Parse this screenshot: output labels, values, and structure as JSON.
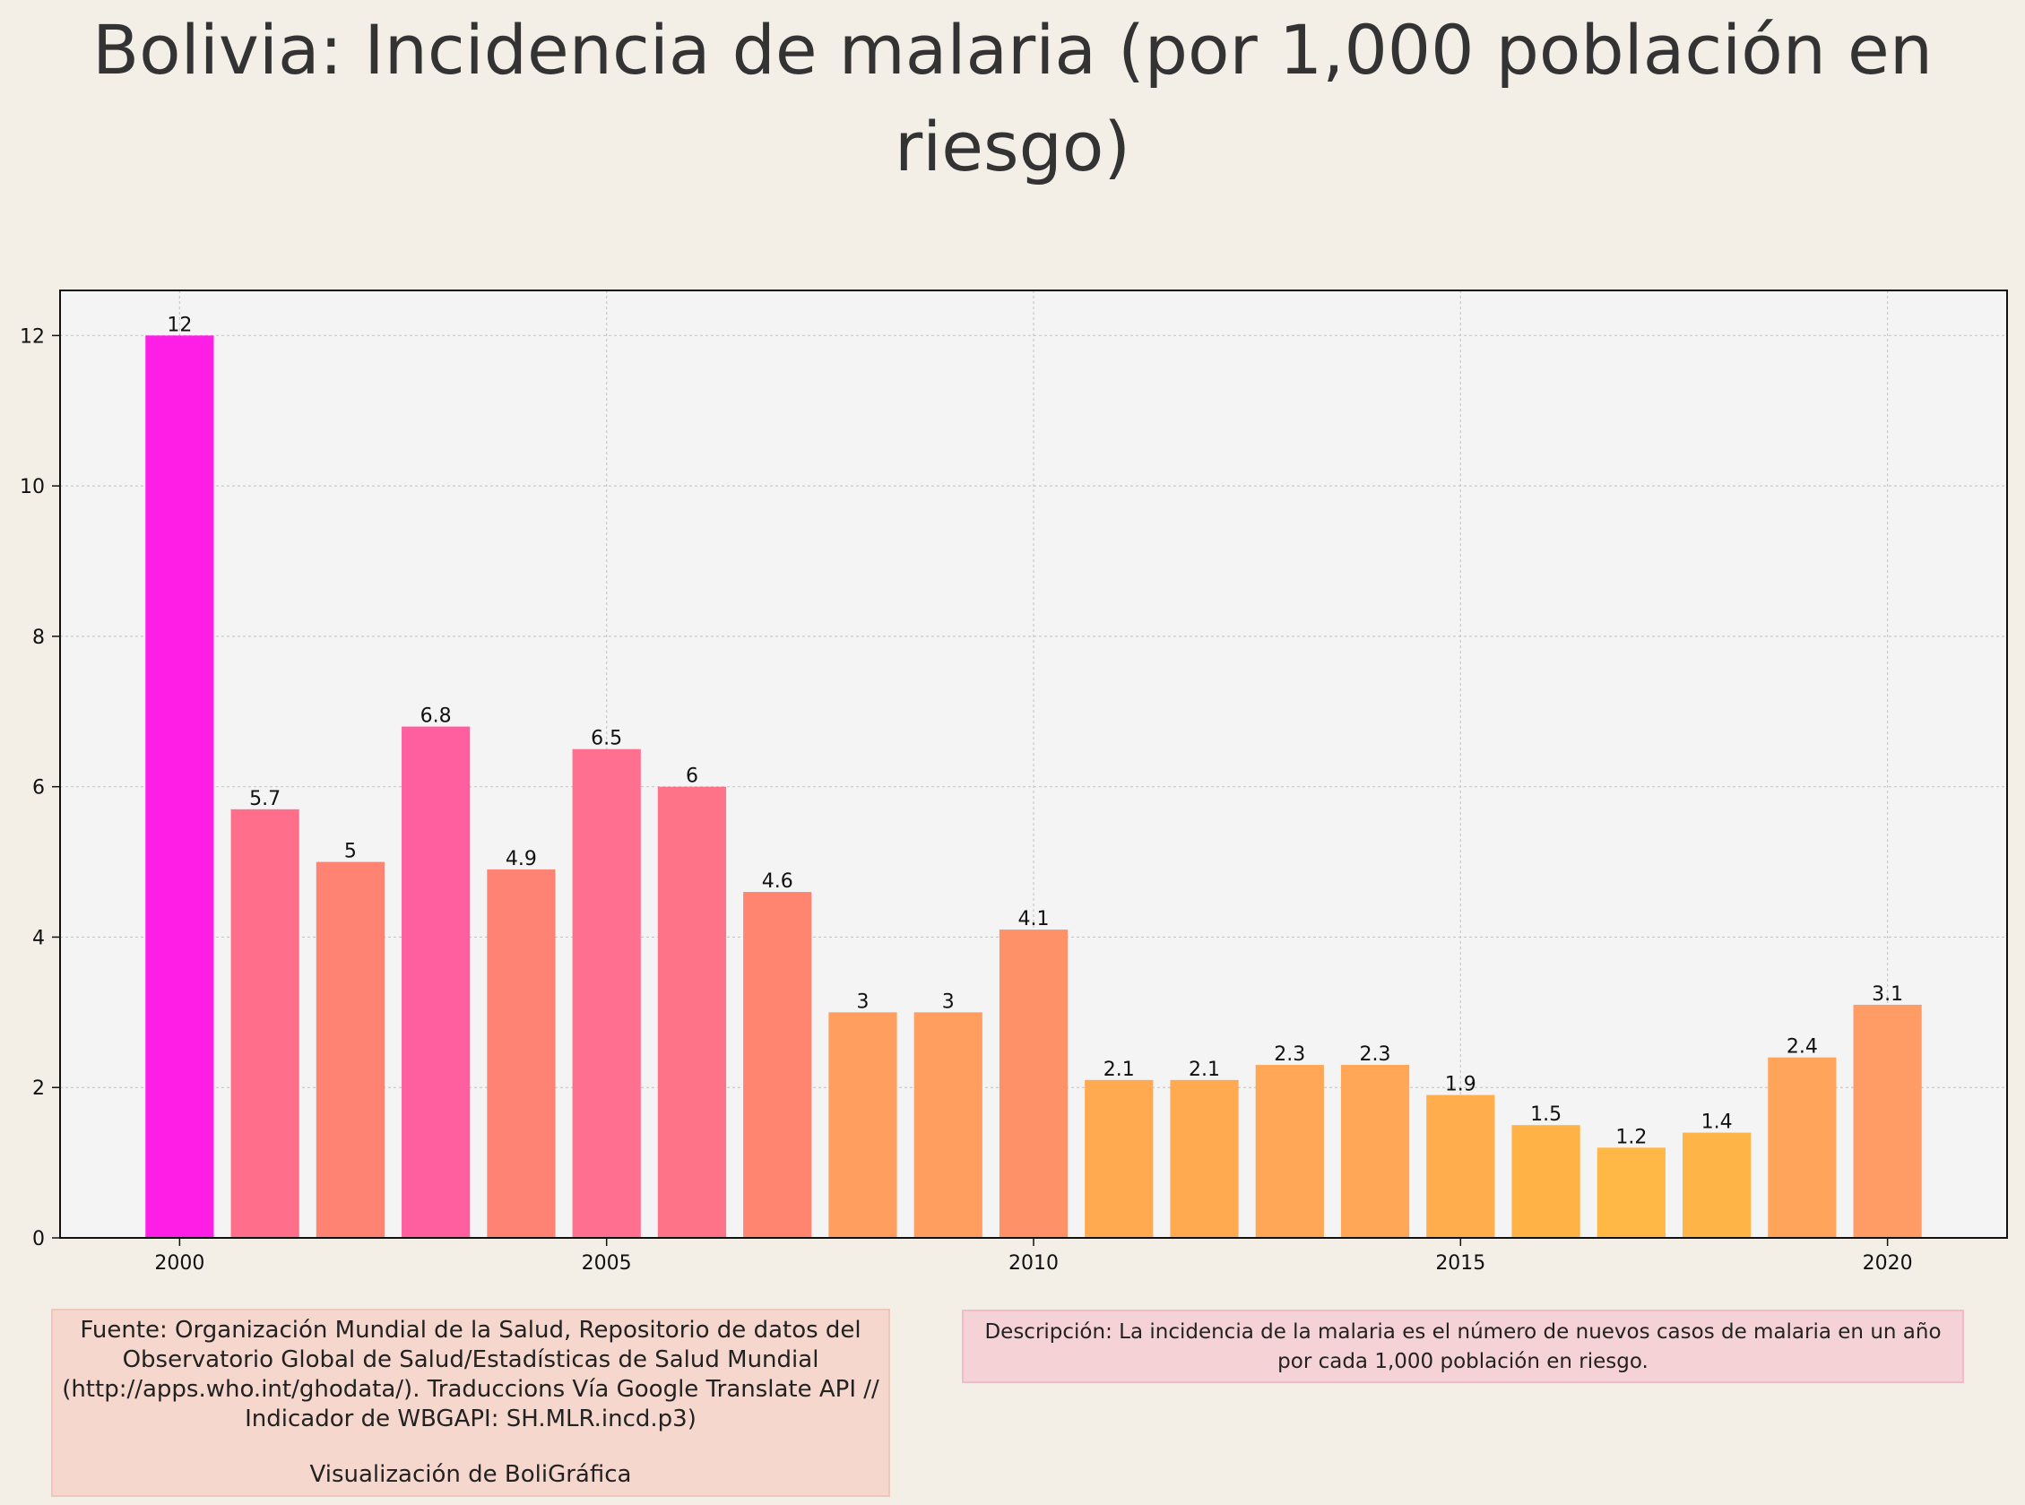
{
  "title": "Bolivia:  Incidencia de malaria (por 1,000 población en riesgo)",
  "source_text": "Fuente: Organización Mundial de la Salud, Repositorio de datos del Observatorio Global de Salud/Estadísticas de Salud Mundial (http://apps.who.int/ghodata/). Traduccions Vía Google Translate API // Indicador de WBGAPI: SH.MLR.incd.p3)",
  "credit_text": "Visualización de BoliGráfica",
  "description_text": "Descripción: La incidencia de la malaria es el número de nuevos casos de malaria en un año por cada 1,000 población en riesgo.",
  "chart_data": {
    "type": "bar",
    "title": "Bolivia:  Incidencia de malaria (por 1,000 población en riesgo)",
    "xlabel": "",
    "ylabel": "",
    "x": [
      2000,
      2001,
      2002,
      2003,
      2004,
      2005,
      2006,
      2007,
      2008,
      2009,
      2010,
      2011,
      2012,
      2013,
      2014,
      2015,
      2016,
      2017,
      2018,
      2019,
      2020
    ],
    "values": [
      12,
      5.7,
      5,
      6.8,
      4.9,
      6.5,
      6,
      4.6,
      3,
      3,
      4.1,
      2.1,
      2.1,
      2.3,
      2.3,
      1.9,
      1.5,
      1.2,
      1.4,
      2.4,
      3.1
    ],
    "value_labels": [
      "12",
      "5.7",
      "5",
      "6.8",
      "4.9",
      "6.5",
      "6",
      "4.6",
      "3",
      "3",
      "4.1",
      "2.1",
      "2.1",
      "2.3",
      "2.3",
      "1.9",
      "1.5",
      "1.2",
      "1.4",
      "2.4",
      "3.1"
    ],
    "xlim": [
      1998.6,
      2021.4
    ],
    "ylim": [
      0,
      12.6
    ],
    "xticks": [
      2000,
      2005,
      2010,
      2015,
      2020
    ],
    "yticks": [
      0,
      2,
      4,
      6,
      8,
      10,
      12
    ],
    "grid": true,
    "legend": "none",
    "colors": [
      "#ff1ee6",
      "#ff6f8b",
      "#ff8373",
      "#ff5f9e",
      "#ff8374",
      "#ff6f90",
      "#ff7389",
      "#ff8570",
      "#ff9e5e",
      "#ff9e5e",
      "#ff9168",
      "#ffaa50",
      "#ffaa50",
      "#ffa756",
      "#ffa756",
      "#ffad4d",
      "#ffb347",
      "#ffb845",
      "#ffb447",
      "#ffa45a",
      "#ff9b64"
    ],
    "plot_background": "#f4f4f4",
    "grid_color": "#c8c8c8"
  }
}
